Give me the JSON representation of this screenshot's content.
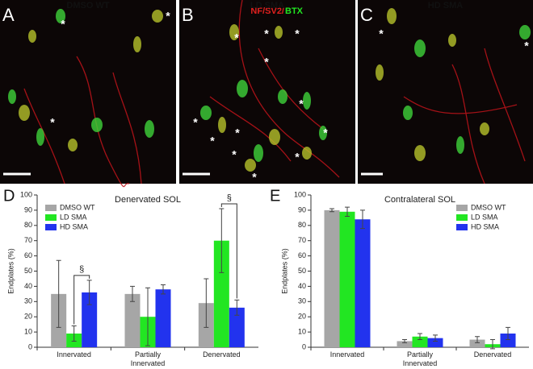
{
  "images": [
    {
      "label": "A",
      "title": "DMSO WT"
    },
    {
      "label": "B",
      "title": "LD SMA"
    },
    {
      "label": "C",
      "title": "HD SMA"
    }
  ],
  "stain": {
    "red": "NF/SV2/",
    "green": "BTX"
  },
  "marker": "*",
  "chart_data": [
    {
      "type": "bar",
      "label": "D",
      "title": "Denervated SOL",
      "y_label": "Endplates (%)",
      "categories": [
        "Innervated",
        "Partially Innervated",
        "Denervated"
      ],
      "series": [
        {
          "name": "DMSO WT",
          "color": "#a6a6a6",
          "values": [
            35,
            35,
            29
          ],
          "errors": [
            22,
            5,
            16
          ]
        },
        {
          "name": "LD SMA",
          "color": "#22e622",
          "values": [
            9,
            20,
            70
          ],
          "errors": [
            5,
            19,
            21
          ]
        },
        {
          "name": "HD SMA",
          "color": "#2233ee",
          "values": [
            36,
            38,
            26
          ],
          "errors": [
            8,
            3,
            5
          ]
        }
      ],
      "annotations": [
        {
          "text": "§",
          "category": "Innervated",
          "between": [
            "LD SMA",
            "HD SMA"
          ]
        },
        {
          "text": "§",
          "category": "Denervated",
          "between": [
            "LD SMA",
            "HD SMA"
          ]
        }
      ],
      "ylim": [
        0,
        100
      ],
      "yticks": [
        0,
        10,
        20,
        30,
        40,
        50,
        60,
        70,
        80,
        90,
        100
      ],
      "legend": "upper-left"
    },
    {
      "type": "bar",
      "label": "E",
      "title": "Contralateral SOL",
      "y_label": "Endplates (%)",
      "categories": [
        "Innervated",
        "Partially Innervated",
        "Denervated"
      ],
      "series": [
        {
          "name": "DMSO WT",
          "color": "#a6a6a6",
          "values": [
            90,
            4,
            5
          ],
          "errors": [
            1,
            1,
            2
          ]
        },
        {
          "name": "LD SMA",
          "color": "#22e622",
          "values": [
            89,
            7,
            2
          ],
          "errors": [
            3,
            2,
            3
          ]
        },
        {
          "name": "HD SMA",
          "color": "#2233ee",
          "values": [
            84,
            6,
            9
          ],
          "errors": [
            6,
            2,
            4
          ]
        }
      ],
      "ylim": [
        0,
        100
      ],
      "yticks": [
        0,
        10,
        20,
        30,
        40,
        50,
        60,
        70,
        80,
        90,
        100
      ],
      "legend": "upper-right"
    }
  ]
}
